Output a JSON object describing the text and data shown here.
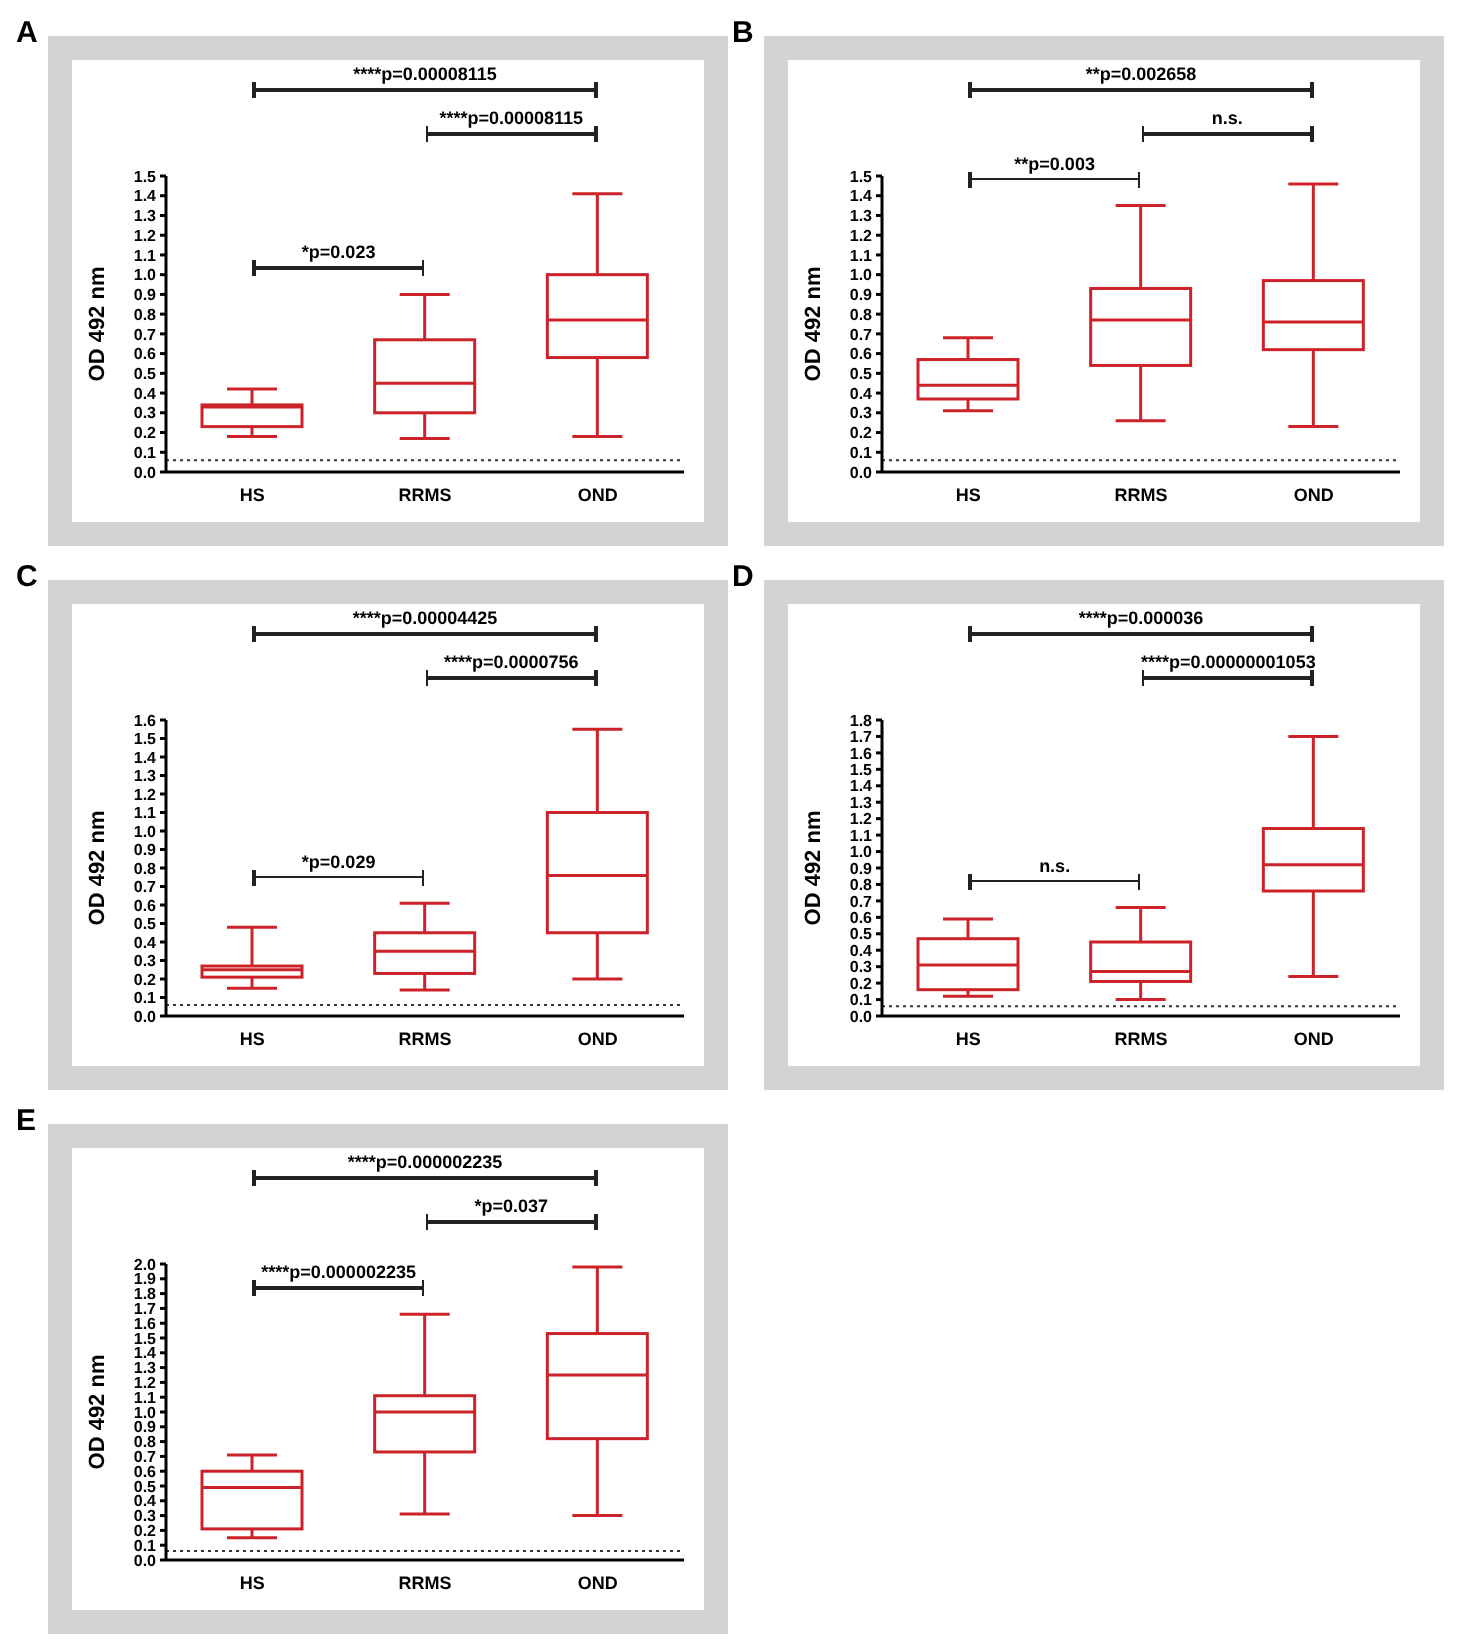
{
  "chart_data": [
    {
      "type": "box",
      "title": "A",
      "ylabel": "OD 492 nm",
      "categories": [
        "HS",
        "RRMS",
        "OND"
      ],
      "color": "#cc2229",
      "ylim": [
        0,
        1.5
      ],
      "yticks": [
        {
          "value": 0,
          "label": "0.0"
        },
        0.1,
        0.2,
        0.3,
        0.4,
        0.5,
        0.6,
        0.7,
        0.8,
        0.9,
        {
          "value": 1,
          "label": "1.0"
        },
        1.1,
        1.2,
        1.3,
        1.4,
        1.5
      ],
      "boxes": [
        {
          "low": 0.18,
          "q1": 0.23,
          "median": 0.33,
          "q3": 0.34,
          "high": 0.42
        },
        {
          "low": 0.17,
          "q1": 0.3,
          "median": 0.45,
          "q3": 0.67,
          "high": 0.9
        },
        {
          "low": 0.18,
          "q1": 0.58,
          "median": 0.77,
          "q3": 1.0,
          "high": 1.41
        }
      ],
      "ref_lines": [
        {
          "axis": "y",
          "value": 0.06,
          "color": "#333333",
          "line_style": "dotted"
        }
      ],
      "annotations": [
        "****p=0.00008115",
        "****p=0.00008115",
        "*p=0.023"
      ]
    },
    {
      "type": "box",
      "title": "B",
      "ylabel": "OD 492 nm",
      "categories": [
        "HS",
        "RRMS",
        "OND"
      ],
      "color": "#cc2229",
      "ylim": [
        0,
        1.5
      ],
      "yticks": [
        {
          "value": 0,
          "label": "0.0"
        },
        0.1,
        0.2,
        0.3,
        0.4,
        0.5,
        0.6,
        0.7,
        0.8,
        0.9,
        {
          "value": 1,
          "label": "1.0"
        },
        1.1,
        1.2,
        1.3,
        1.4,
        1.5
      ],
      "boxes": [
        {
          "low": 0.31,
          "q1": 0.37,
          "median": 0.44,
          "q3": 0.57,
          "high": 0.68
        },
        {
          "low": 0.26,
          "q1": 0.54,
          "median": 0.77,
          "q3": 0.93,
          "high": 1.35
        },
        {
          "low": 0.23,
          "q1": 0.62,
          "median": 0.76,
          "q3": 0.97,
          "high": 1.46
        }
      ],
      "ref_lines": [
        {
          "axis": "y",
          "value": 0.06,
          "color": "#333333",
          "line_style": "dotted"
        }
      ],
      "annotations": [
        "**p=0.002658",
        "n.s.",
        "**p=0.003"
      ]
    },
    {
      "type": "box",
      "title": "C",
      "ylabel": "OD 492 nm",
      "categories": [
        "HS",
        "RRMS",
        "OND"
      ],
      "color": "#cc2229",
      "ylim": [
        0,
        1.6
      ],
      "yticks": [
        {
          "value": 0,
          "label": "0.0"
        },
        0.1,
        0.2,
        0.3,
        0.4,
        0.5,
        0.6,
        0.7,
        0.8,
        0.9,
        {
          "value": 1,
          "label": "1.0"
        },
        1.1,
        1.2,
        1.3,
        1.4,
        1.5,
        1.6
      ],
      "boxes": [
        {
          "low": 0.15,
          "q1": 0.21,
          "median": 0.25,
          "q3": 0.27,
          "high": 0.48
        },
        {
          "low": 0.14,
          "q1": 0.23,
          "median": 0.35,
          "q3": 0.45,
          "high": 0.61
        },
        {
          "low": 0.2,
          "q1": 0.45,
          "median": 0.76,
          "q3": 1.1,
          "high": 1.55
        }
      ],
      "ref_lines": [
        {
          "axis": "y",
          "value": 0.06,
          "color": "#333333",
          "line_style": "dotted"
        }
      ],
      "annotations": [
        "****p=0.00004425",
        "****p=0.0000756",
        "*p=0.029"
      ]
    },
    {
      "type": "box",
      "title": "D",
      "ylabel": "OD 492 nm",
      "categories": [
        "HS",
        "RRMS",
        "OND"
      ],
      "color": "#cc2229",
      "ylim": [
        0,
        1.8
      ],
      "yticks": [
        {
          "value": 0,
          "label": "0.0"
        },
        0.1,
        0.2,
        0.3,
        0.4,
        0.5,
        0.6,
        0.7,
        0.8,
        0.9,
        {
          "value": 1,
          "label": "1.0"
        },
        1.1,
        1.2,
        1.3,
        1.4,
        1.5,
        1.6,
        1.7,
        1.8
      ],
      "boxes": [
        {
          "low": 0.12,
          "q1": 0.16,
          "median": 0.31,
          "q3": 0.47,
          "high": 0.59
        },
        {
          "low": 0.1,
          "q1": 0.21,
          "median": 0.27,
          "q3": 0.45,
          "high": 0.66
        },
        {
          "low": 0.24,
          "q1": 0.76,
          "median": 0.92,
          "q3": 1.14,
          "high": 1.7
        }
      ],
      "ref_lines": [
        {
          "axis": "y",
          "value": 0.06,
          "color": "#333333",
          "line_style": "dotted"
        }
      ],
      "annotations": [
        "****p=0.000036",
        "****p=0.00000001053",
        "n.s."
      ]
    },
    {
      "type": "box",
      "title": "E",
      "ylabel": "OD 492 nm",
      "categories": [
        "HS",
        "RRMS",
        "OND"
      ],
      "color": "#cc2229",
      "ylim": [
        0,
        2.0
      ],
      "yticks": [
        {
          "value": 0,
          "label": "0.0"
        },
        0.1,
        0.2,
        0.3,
        0.4,
        0.5,
        0.6,
        0.7,
        0.8,
        0.9,
        {
          "value": 1,
          "label": "1.0"
        },
        1.1,
        1.2,
        1.3,
        1.4,
        1.5,
        1.6,
        1.7,
        1.8,
        1.9,
        {
          "value": 2,
          "label": "2.0"
        }
      ],
      "boxes": [
        {
          "low": 0.15,
          "q1": 0.21,
          "median": 0.49,
          "q3": 0.6,
          "high": 0.71
        },
        {
          "low": 0.31,
          "q1": 0.73,
          "median": 1.0,
          "q3": 1.11,
          "high": 1.66
        },
        {
          "low": 0.3,
          "q1": 0.82,
          "median": 1.25,
          "q3": 1.53,
          "high": 1.98
        }
      ],
      "ref_lines": [
        {
          "axis": "y",
          "value": 0.06,
          "color": "#333333",
          "line_style": "dotted"
        }
      ],
      "annotations": [
        "****p=0.000002235",
        "*p=0.037",
        "****p=0.000002235"
      ]
    }
  ]
}
